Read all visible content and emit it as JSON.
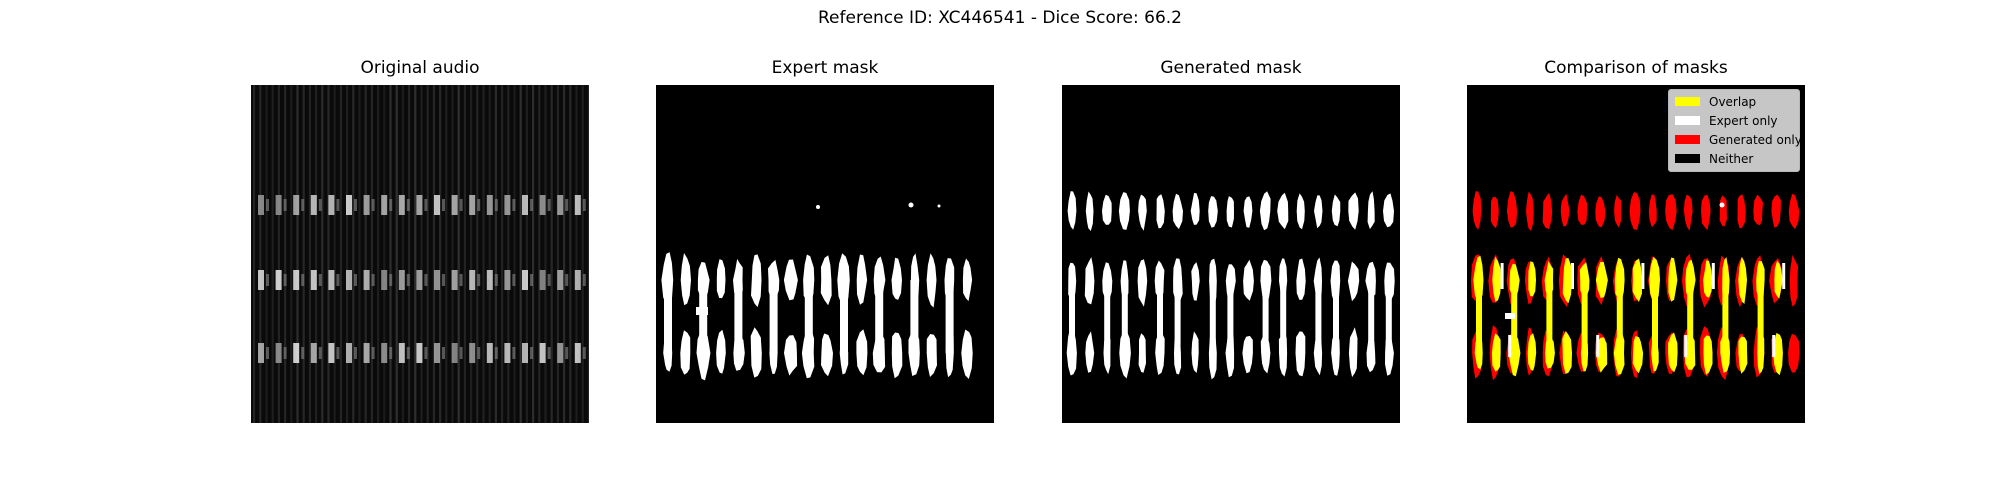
{
  "figure": {
    "title": "Reference ID: XC446541 - Dice Score: 66.2"
  },
  "panels": [
    {
      "id": "original",
      "title": "Original audio"
    },
    {
      "id": "expert",
      "title": "Expert mask"
    },
    {
      "id": "generated",
      "title": "Generated mask"
    },
    {
      "id": "comparison",
      "title": "Comparison of masks"
    }
  ],
  "legend": {
    "items": [
      {
        "label": "Overlap",
        "color": "#ffff00"
      },
      {
        "label": "Expert only",
        "color": "#ffffff"
      },
      {
        "label": "Generated only",
        "color": "#ff0000"
      },
      {
        "label": "Neither",
        "color": "#000000"
      }
    ]
  },
  "colors": {
    "overlap": "#ffff00",
    "expert_only": "#ffffff",
    "generated_only": "#ff0000",
    "neither": "#000000"
  }
}
